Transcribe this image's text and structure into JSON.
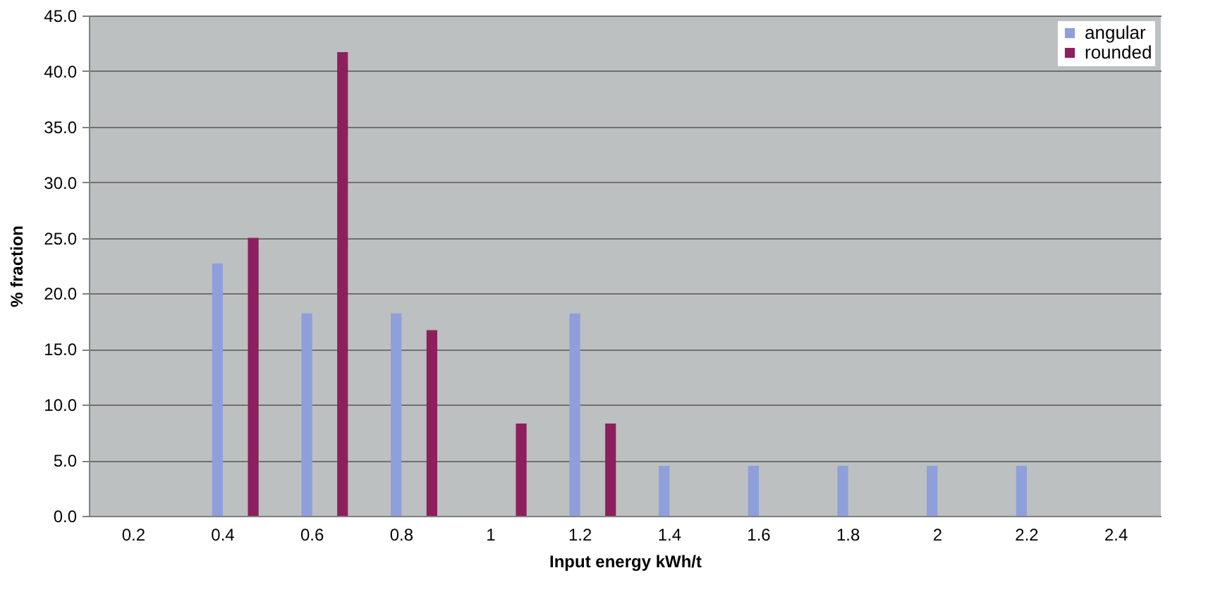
{
  "chart_data": {
    "type": "bar",
    "xlabel": "Input energy kWh/t",
    "ylabel": "% fraction",
    "categories": [
      "0.2",
      "0.4",
      "0.6",
      "0.8",
      "1",
      "1.2",
      "1.4",
      "1.6",
      "1.8",
      "2",
      "2.2",
      "2.4"
    ],
    "series": [
      {
        "name": "angular",
        "color": "#8e9fdc",
        "values": [
          0,
          22.7,
          18.2,
          18.2,
          0,
          18.2,
          4.5,
          4.5,
          4.5,
          4.5,
          4.5,
          0
        ]
      },
      {
        "name": "rounded",
        "color": "#8c1f5c",
        "values": [
          0,
          25.0,
          41.7,
          16.7,
          8.3,
          8.3,
          0,
          0,
          0,
          0,
          0,
          0
        ]
      }
    ],
    "ylim": [
      0,
      45
    ],
    "yticks": [
      {
        "value": 0,
        "label": "0.0"
      },
      {
        "value": 5,
        "label": "5.0"
      },
      {
        "value": 10,
        "label": "10.0"
      },
      {
        "value": 15,
        "label": "15.0"
      },
      {
        "value": 20,
        "label": "20.0"
      },
      {
        "value": 25,
        "label": "25.0"
      },
      {
        "value": 30,
        "label": "30.0"
      },
      {
        "value": 35,
        "label": "35.0"
      },
      {
        "value": 40,
        "label": "40.0"
      },
      {
        "value": 45,
        "label": "45.0"
      }
    ],
    "grid": "y",
    "legend": "top right"
  }
}
